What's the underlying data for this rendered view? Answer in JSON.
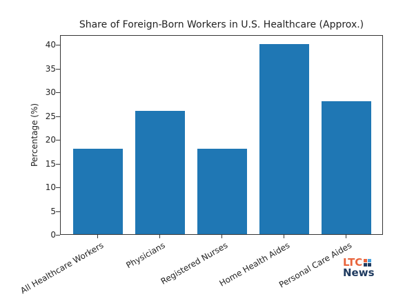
{
  "chart_data": {
    "type": "bar",
    "title": "Share of Foreign-Born Workers in U.S. Healthcare (Approx.)",
    "xlabel": "",
    "ylabel": "Percentage (%)",
    "categories": [
      "All Healthcare Workers",
      "Physicians",
      "Registered Nurses",
      "Home Health Aides",
      "Personal Care Aides"
    ],
    "values": [
      18,
      26,
      18,
      40,
      28
    ],
    "ylim": [
      0,
      42
    ],
    "yticks": [
      0,
      5,
      10,
      15,
      20,
      25,
      30,
      35,
      40
    ],
    "grid": false,
    "bar_color": "#1f77b4"
  },
  "logo": {
    "line1": "LTC",
    "line2": "News",
    "colors": {
      "orange": "#e8643c",
      "navy": "#1e3a5f",
      "light_blue": "#4aa3df"
    }
  }
}
